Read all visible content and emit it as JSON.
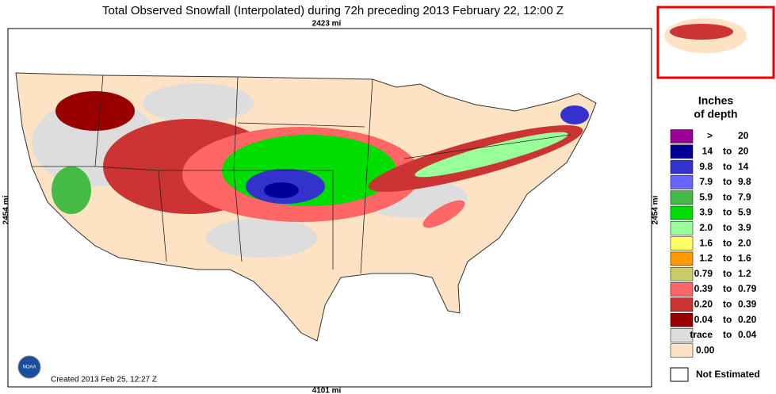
{
  "header": {
    "title": "Total Observed Snowfall (Interpolated) during 72h preceding 2013 February 22, 12:00 Z",
    "top_scale": "2423 mi",
    "left_scale": "2454 mi",
    "right_scale": "2454 mi",
    "bottom_scale": "4101 mi"
  },
  "footer": {
    "created": "Created 2013 Feb 25, 12:27 Z",
    "logo": "NOAA"
  },
  "legend": {
    "title_lines": [
      "Inches",
      "of depth"
    ],
    "items": [
      {
        "color": "#990099",
        "cells": [
          ">",
          "20"
        ]
      },
      {
        "color": "#000099",
        "cells": [
          "14",
          "to",
          "20"
        ]
      },
      {
        "color": "#3333cc",
        "cells": [
          "9.8",
          "to",
          "14"
        ]
      },
      {
        "color": "#6666ff",
        "cells": [
          "7.9",
          "to",
          "9.8"
        ]
      },
      {
        "color": "#44bb44",
        "cells": [
          "5.9",
          "to",
          "7.9"
        ]
      },
      {
        "color": "#00dd00",
        "cells": [
          "3.9",
          "to",
          "5.9"
        ]
      },
      {
        "color": "#99ff99",
        "cells": [
          "2.0",
          "to",
          "3.9"
        ]
      },
      {
        "color": "#ffff66",
        "cells": [
          "1.6",
          "to",
          "2.0"
        ]
      },
      {
        "color": "#ff9900",
        "cells": [
          "1.2",
          "to",
          "1.6"
        ]
      },
      {
        "color": "#cccc66",
        "cells": [
          "0.79",
          "to",
          "1.2"
        ]
      },
      {
        "color": "#ff6666",
        "cells": [
          "0.39",
          "to",
          "0.79"
        ]
      },
      {
        "color": "#cc3333",
        "cells": [
          "0.20",
          "to",
          "0.39"
        ]
      },
      {
        "color": "#990000",
        "cells": [
          "0.04",
          "to",
          "0.20"
        ]
      },
      {
        "color": "#dddddd",
        "cells": [
          "trace",
          "to",
          "0.04"
        ]
      },
      {
        "color": "#fde3c4",
        "cells": [
          "0.00"
        ]
      }
    ],
    "not_estimated": {
      "color": "#ffffff",
      "label": "Not Estimated"
    }
  }
}
